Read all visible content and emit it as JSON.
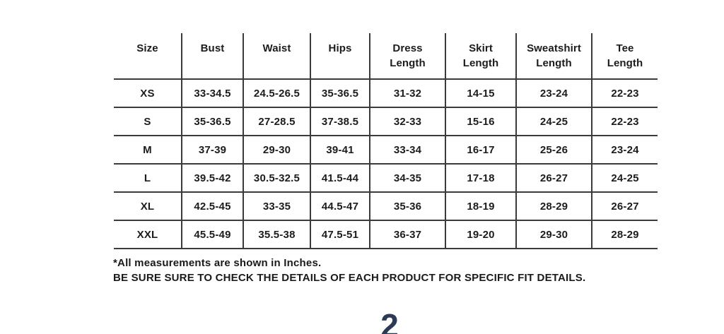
{
  "table": {
    "title": "size-chart",
    "units_note": "Inches",
    "headers": [
      {
        "lines": [
          "Size"
        ]
      },
      {
        "lines": [
          "Bust"
        ]
      },
      {
        "lines": [
          "Waist"
        ]
      },
      {
        "lines": [
          "Hips"
        ]
      },
      {
        "lines": [
          "Dress",
          "Length"
        ]
      },
      {
        "lines": [
          "Skirt",
          "Length"
        ]
      },
      {
        "lines": [
          "Sweatshirt",
          "Length"
        ]
      },
      {
        "lines": [
          "Tee",
          "Length"
        ]
      }
    ],
    "rows": [
      [
        "XS",
        "33-34.5",
        "24.5-26.5",
        "35-36.5",
        "31-32",
        "14-15",
        "23-24",
        "22-23"
      ],
      [
        "S",
        "35-36.5",
        "27-28.5",
        "37-38.5",
        "32-33",
        "15-16",
        "24-25",
        "22-23"
      ],
      [
        "M",
        "37-39",
        "29-30",
        "39-41",
        "33-34",
        "16-17",
        "25-26",
        "23-24"
      ],
      [
        "L",
        "39.5-42",
        "30.5-32.5",
        "41.5-44",
        "34-35",
        "17-18",
        "26-27",
        "24-25"
      ],
      [
        "XL",
        "42.5-45",
        "33-35",
        "44.5-47",
        "35-36",
        "18-19",
        "28-29",
        "26-27"
      ],
      [
        "XXL",
        "45.5-49",
        "35.5-38",
        "47.5-51",
        "36-37",
        "19-20",
        "29-30",
        "28-29"
      ]
    ]
  },
  "footnotes": {
    "line1": "*All measurements are shown in Inches.",
    "line2": "BE SURE SURE TO CHECK THE DETAILS OF EACH PRODUCT FOR SPECIFIC FIT DETAILS."
  },
  "page_indicator": "2",
  "colors": {
    "background": "#ffffff",
    "text": "#1c1c1c",
    "border": "#3b3b3b",
    "page_indicator": "#2b3a55"
  }
}
